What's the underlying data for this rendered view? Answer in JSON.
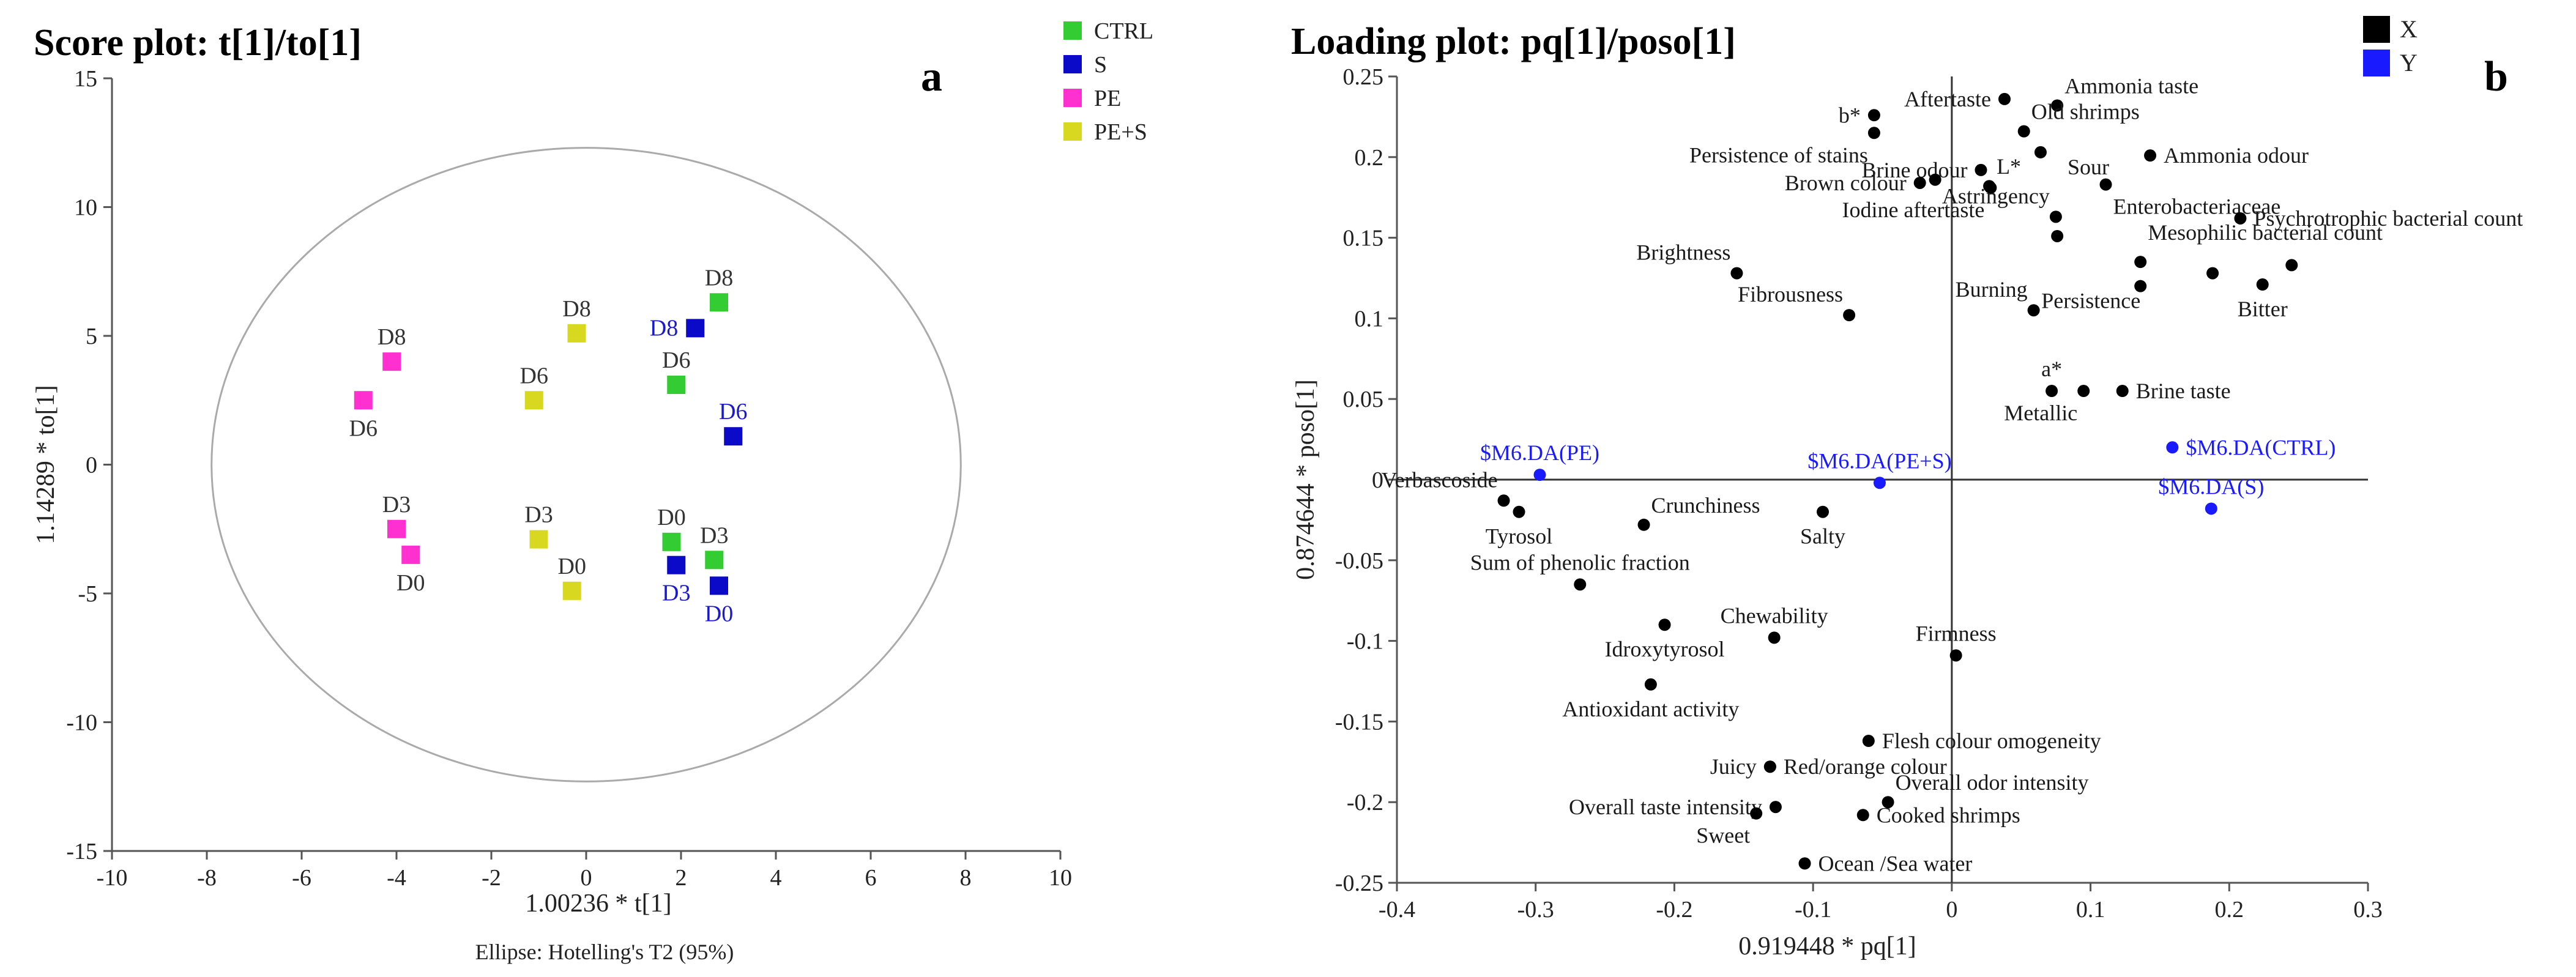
{
  "chart_data": [
    {
      "type": "scatter",
      "id": "a",
      "title": "Score plot: t[1]/to[1]",
      "panel_label": "a",
      "xlabel": "1.00236 * t[1]",
      "ylabel": "1.14289 * to[1]",
      "footnote": "Ellipse: Hotelling's T2 (95%)",
      "xlim": [
        -10,
        10
      ],
      "ylim": [
        -15,
        15
      ],
      "x_ticks": [
        -10,
        -8,
        -6,
        -4,
        -2,
        0,
        2,
        4,
        6,
        8,
        10
      ],
      "y_ticks": [
        -15,
        -10,
        -5,
        0,
        5,
        10,
        15
      ],
      "ellipse": {
        "cx": 0,
        "cy": 0,
        "rx": 7.9,
        "ry": 12.3
      },
      "legend": [
        {
          "label": "CTRL",
          "color": "#33cc33"
        },
        {
          "label": "S",
          "color": "#0a0ac8"
        },
        {
          "label": "PE",
          "color": "#ff2fd0"
        },
        {
          "label": "PE+S",
          "color": "#d8d820"
        }
      ],
      "series": [
        {
          "name": "CTRL",
          "color": "#33cc33",
          "label_color": "#333333",
          "points": [
            {
              "x": 2.8,
              "y": 6.3,
              "label": "D8",
              "lpos": "above"
            },
            {
              "x": 1.9,
              "y": 3.1,
              "label": "D6",
              "lpos": "above"
            },
            {
              "x": 1.8,
              "y": -3.0,
              "label": "D0",
              "lpos": "above"
            },
            {
              "x": 2.7,
              "y": -3.7,
              "label": "D3",
              "lpos": "above"
            }
          ]
        },
        {
          "name": "S",
          "color": "#0a0ac8",
          "label_color": "#1a1acc",
          "points": [
            {
              "x": 2.3,
              "y": 5.3,
              "label": "D8",
              "lpos": "left"
            },
            {
              "x": 3.1,
              "y": 1.1,
              "label": "D6",
              "lpos": "above"
            },
            {
              "x": 1.9,
              "y": -3.9,
              "label": "D3",
              "lpos": "below"
            },
            {
              "x": 2.8,
              "y": -4.7,
              "label": "D0",
              "lpos": "below"
            }
          ]
        },
        {
          "name": "PE",
          "color": "#ff2fd0",
          "label_color": "#333333",
          "points": [
            {
              "x": -4.1,
              "y": 4.0,
              "label": "D8",
              "lpos": "above"
            },
            {
              "x": -4.7,
              "y": 2.5,
              "label": "D6",
              "lpos": "below"
            },
            {
              "x": -4.0,
              "y": -2.5,
              "label": "D3",
              "lpos": "above"
            },
            {
              "x": -3.7,
              "y": -3.5,
              "label": "D0",
              "lpos": "below"
            }
          ]
        },
        {
          "name": "PE+S",
          "color": "#d8d820",
          "label_color": "#333333",
          "points": [
            {
              "x": -0.2,
              "y": 5.1,
              "label": "D8",
              "lpos": "above"
            },
            {
              "x": -1.1,
              "y": 2.5,
              "label": "D6",
              "lpos": "above"
            },
            {
              "x": -1.0,
              "y": -2.9,
              "label": "D3",
              "lpos": "above"
            },
            {
              "x": -0.3,
              "y": -4.9,
              "label": "D0",
              "lpos": "above"
            }
          ]
        }
      ]
    },
    {
      "type": "scatter",
      "id": "b",
      "title": "Loading plot: pq[1]/poso[1]",
      "panel_label": "b",
      "xlabel": "0.919448 * pq[1]",
      "ylabel": "0.874644 * poso[1]",
      "xlim": [
        -0.4,
        0.3
      ],
      "ylim": [
        -0.25,
        0.25
      ],
      "x_ticks": [
        -0.4,
        -0.3,
        -0.2,
        -0.1,
        0,
        0.1,
        0.2,
        0.3
      ],
      "y_ticks": [
        -0.25,
        -0.2,
        -0.15,
        -0.1,
        -0.05,
        0,
        0.05,
        0.1,
        0.15,
        0.2,
        0.25
      ],
      "legend": [
        {
          "label": "X",
          "color": "#000000"
        },
        {
          "label": "Y",
          "color": "#1a1aff"
        }
      ],
      "series": [
        {
          "name": "X",
          "color": "#000000",
          "label_color": "#1a1a1a",
          "points": [
            {
              "x": 0.038,
              "y": 0.236,
              "label": "Aftertaste",
              "lpos": "left"
            },
            {
              "x": 0.076,
              "y": 0.232,
              "label": "Ammonia taste",
              "lpos": "ur"
            },
            {
              "x": -0.056,
              "y": 0.226,
              "label": "b*",
              "lpos": "left"
            },
            {
              "x": 0.052,
              "y": 0.216,
              "label": "Old shrimps",
              "lpos": "ur"
            },
            {
              "x": -0.056,
              "y": 0.215,
              "label": "Persistence of stains",
              "lpos": "bl"
            },
            {
              "x": 0.064,
              "y": 0.203,
              "label": "Sour",
              "lpos": "bright"
            },
            {
              "x": 0.143,
              "y": 0.201,
              "label": "Ammonia odour",
              "lpos": "right"
            },
            {
              "x": 0.021,
              "y": 0.192,
              "label": "Brine odour",
              "lpos": "left"
            },
            {
              "x": 0.027,
              "y": 0.182,
              "label": "L*",
              "lpos": "ur"
            },
            {
              "x": -0.012,
              "y": 0.186,
              "label": "",
              "lpos": "none"
            },
            {
              "x": -0.023,
              "y": 0.184,
              "label": "Brown colour",
              "lpos": "left"
            },
            {
              "x": 0.111,
              "y": 0.183,
              "label": "Enterobacteriaceae",
              "lpos": "br"
            },
            {
              "x": 0.028,
              "y": 0.181,
              "label": "Iodine aftertaste",
              "lpos": "bl"
            },
            {
              "x": 0.075,
              "y": 0.163,
              "label": "Astringency",
              "lpos": "ul"
            },
            {
              "x": 0.208,
              "y": 0.162,
              "label": "Psychrotrophic bacterial count",
              "lpos": "right"
            },
            {
              "x": 0.076,
              "y": 0.151,
              "label": "",
              "lpos": "none"
            },
            {
              "x": 0.136,
              "y": 0.135,
              "label": "Mesophilic bacterial count",
              "lpos": "ur2"
            },
            {
              "x": 0.245,
              "y": 0.133,
              "label": "",
              "lpos": "none"
            },
            {
              "x": 0.188,
              "y": 0.128,
              "label": "",
              "lpos": "none"
            },
            {
              "x": -0.155,
              "y": 0.128,
              "label": "Brightness",
              "lpos": "ul"
            },
            {
              "x": 0.224,
              "y": 0.121,
              "label": "Bitter",
              "lpos": "below"
            },
            {
              "x": 0.059,
              "y": 0.105,
              "label": "Burning",
              "lpos": "ul"
            },
            {
              "x": 0.136,
              "y": 0.12,
              "label": "Persistence",
              "lpos": "bright2"
            },
            {
              "x": -0.074,
              "y": 0.102,
              "label": "Fibrousness",
              "lpos": "ul"
            },
            {
              "x": 0.072,
              "y": 0.055,
              "label": "a*",
              "lpos": "above"
            },
            {
              "x": 0.095,
              "y": 0.055,
              "label": "Metallic",
              "lpos": "bl"
            },
            {
              "x": 0.123,
              "y": 0.055,
              "label": "Brine taste",
              "lpos": "right"
            },
            {
              "x": -0.323,
              "y": -0.013,
              "label": "Verbascoside",
              "lpos": "ul"
            },
            {
              "x": -0.312,
              "y": -0.02,
              "label": "Tyrosol",
              "lpos": "below"
            },
            {
              "x": -0.222,
              "y": -0.028,
              "label": "Crunchiness",
              "lpos": "ur"
            },
            {
              "x": -0.093,
              "y": -0.02,
              "label": "Salty",
              "lpos": "below"
            },
            {
              "x": -0.268,
              "y": -0.065,
              "label": "Sum of phenolic fraction",
              "lpos": "above"
            },
            {
              "x": -0.207,
              "y": -0.09,
              "label": "Idroxytyrosol",
              "lpos": "below"
            },
            {
              "x": -0.128,
              "y": -0.098,
              "label": "Chewability",
              "lpos": "above"
            },
            {
              "x": 0.003,
              "y": -0.109,
              "label": "Firmness",
              "lpos": "above"
            },
            {
              "x": -0.217,
              "y": -0.127,
              "label": "Antioxidant activity",
              "lpos": "below"
            },
            {
              "x": -0.06,
              "y": -0.162,
              "label": "Flesh colour omogeneity",
              "lpos": "right"
            },
            {
              "x": -0.131,
              "y": -0.178,
              "label": "Juicy",
              "lpos": "left"
            },
            {
              "x": -0.131,
              "y": -0.178,
              "label": "Red/orange colour",
              "lpos": "right"
            },
            {
              "x": -0.046,
              "y": -0.2,
              "label": "Overall odor intensity",
              "lpos": "ur"
            },
            {
              "x": -0.127,
              "y": -0.203,
              "label": "Overall taste intensity",
              "lpos": "left"
            },
            {
              "x": -0.141,
              "y": -0.207,
              "label": "Sweet",
              "lpos": "bl"
            },
            {
              "x": -0.064,
              "y": -0.208,
              "label": "Cooked shrimps",
              "lpos": "right"
            },
            {
              "x": -0.106,
              "y": -0.238,
              "label": "Ocean /Sea water",
              "lpos": "right"
            }
          ]
        },
        {
          "name": "Y",
          "color": "#1a1aff",
          "label_color": "#1a1aff",
          "points": [
            {
              "x": -0.297,
              "y": 0.003,
              "label": "$M6.DA(PE)",
              "lpos": "above"
            },
            {
              "x": -0.052,
              "y": -0.002,
              "label": "$M6.DA(PE+S)",
              "lpos": "above"
            },
            {
              "x": 0.159,
              "y": 0.02,
              "label": "$M6.DA(CTRL)",
              "lpos": "right"
            },
            {
              "x": 0.187,
              "y": -0.018,
              "label": "$M6.DA(S)",
              "lpos": "above"
            }
          ]
        }
      ]
    }
  ]
}
